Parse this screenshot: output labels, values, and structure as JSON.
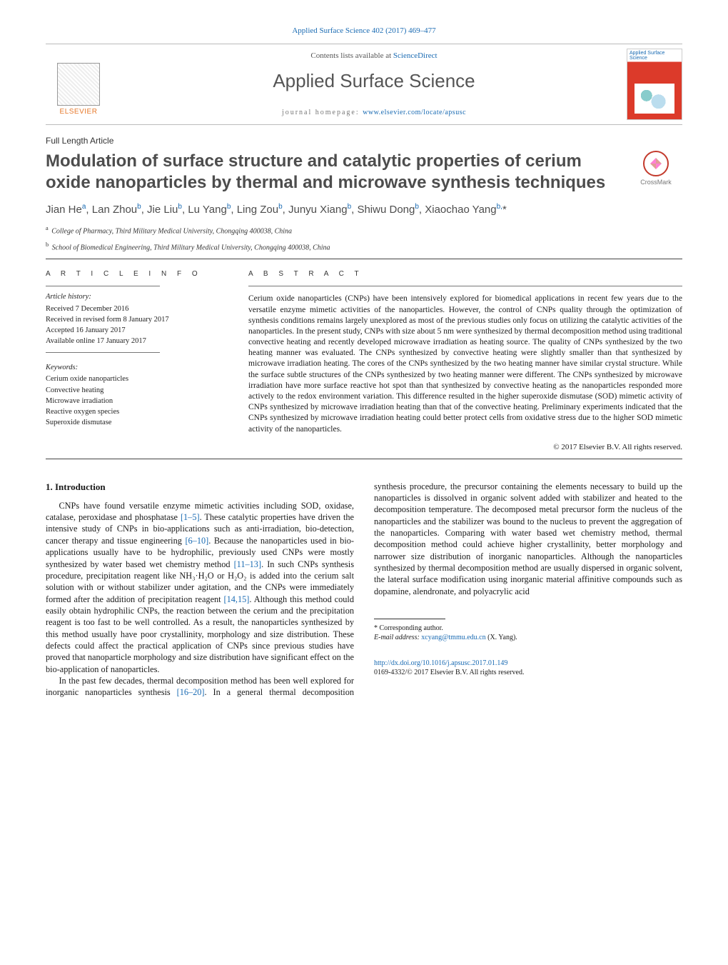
{
  "top_citation": "Applied Surface Science 402 (2017) 469–477",
  "masthead": {
    "publisher_name": "ELSEVIER",
    "sciencedirect_line_prefix": "Contents lists available at ",
    "sciencedirect_link": "ScienceDirect",
    "journal_name": "Applied Surface Science",
    "homepage_prefix": "journal homepage: ",
    "homepage_link": "www.elsevier.com/locate/apsusc",
    "cover_title": "Applied Surface Science"
  },
  "article_type": "Full Length Article",
  "title": "Modulation of surface structure and catalytic properties of cerium oxide nanoparticles by thermal and microwave synthesis techniques",
  "crossmark_label": "CrossMark",
  "authors_html": "Jian He<sup>a</sup>, Lan Zhou<sup>b</sup>, Jie Liu<sup>b</sup>, Lu Yang<sup>b</sup>, Ling Zou<sup>b</sup>, Junyu Xiang<sup>b</sup>, Shiwu Dong<sup>b</sup>, Xiaochao Yang<sup>b,</sup>*",
  "affiliations": [
    {
      "sup": "a",
      "text": "College of Pharmacy, Third Military Medical University, Chongqing 400038, China"
    },
    {
      "sup": "b",
      "text": "School of Biomedical Engineering, Third Military Medical University, Chongqing 400038, China"
    }
  ],
  "article_info": {
    "heading": "A R T I C L E   I N F O",
    "history_label": "Article history:",
    "history": [
      "Received 7 December 2016",
      "Received in revised form 8 January 2017",
      "Accepted 16 January 2017",
      "Available online 17 January 2017"
    ],
    "keywords_label": "Keywords:",
    "keywords": [
      "Cerium oxide nanoparticles",
      "Convective heating",
      "Microwave irradiation",
      "Reactive oxygen species",
      "Superoxide dismutase"
    ]
  },
  "abstract": {
    "heading": "A B S T R A C T",
    "text": "Cerium oxide nanoparticles (CNPs) have been intensively explored for biomedical applications in recent few years due to the versatile enzyme mimetic activities of the nanoparticles. However, the control of CNPs quality through the optimization of synthesis conditions remains largely unexplored as most of the previous studies only focus on utilizing the catalytic activities of the nanoparticles. In the present study, CNPs with size about 5 nm were synthesized by thermal decomposition method using traditional convective heating and recently developed microwave irradiation as heating source. The quality of CNPs synthesized by the two heating manner was evaluated. The CNPs synthesized by convective heating were slightly smaller than that synthesized by microwave irradiation heating. The cores of the CNPs synthesized by the two heating manner have similar crystal structure. While the surface subtle structures of the CNPs synthesized by two heating manner were different. The CNPs synthesized by microwave irradiation have more surface reactive hot spot than that synthesized by convective heating as the nanoparticles responded more actively to the redox environment variation. This difference resulted in the higher superoxide dismutase (SOD) mimetic activity of CNPs synthesized by microwave irradiation heating than that of the convective heating. Preliminary experiments indicated that the CNPs synthesized by microwave irradiation heating could better protect cells from oxidative stress due to the higher SOD mimetic activity of the nanoparticles.",
    "copyright": "© 2017 Elsevier B.V. All rights reserved."
  },
  "body": {
    "intro_heading": "1.  Introduction",
    "p1_a": "CNPs have found versatile enzyme mimetic activities including SOD, oxidase, catalase, peroxidase and phosphatase ",
    "p1_ref1": "[1–5]",
    "p1_b": ". These catalytic properties have driven the intensive study of CNPs in bio-applications such as anti-irradiation, bio-detection, cancer therapy and tissue engineering ",
    "p1_ref2": "[6–10]",
    "p1_c": ". Because the nanoparticles used in bio-applications usually have to be hydrophilic, previously used CNPs were mostly synthesized by water based wet chemistry method ",
    "p1_ref3": "[11–13]",
    "p1_d": ". In such CNPs synthesis procedure, precipitation reagent like NH₃·H₂O or H₂O₂ is added into the cerium salt solution with or without stabilizer under agitation, and the CNPs were immediately formed after the addition of precipitation reagent ",
    "p1_ref4": "[14,15]",
    "p1_e": ". Although this method could easily obtain hydrophilic CNPs, the reaction between the cerium and the precipitation reagent is too fast to be well controlled. As a result, the nanoparticles synthe",
    "p1_cont": "sized by this method usually have poor crystallinity, morphology and size distribution. These defects could affect the practical application of CNPs since previous studies have proved that nanoparticle morphology and size distribution have significant effect on the bio-application of nanoparticles.",
    "p2_a": "In the past few decades, thermal decomposition method has been well explored for inorganic nanoparticles synthesis ",
    "p2_ref1": "[16–20]",
    "p2_b": ". In a general thermal decomposition synthesis procedure, the precursor containing the elements necessary to build up the nanoparticles is dissolved in organic solvent added with stabilizer and heated to the decomposition temperature. The decomposed metal precursor form the nucleus of the nanoparticles and the stabilizer was bound to the nucleus to prevent the aggregation of the nanoparticles. Comparing with water based wet chemistry method, thermal decomposition method could achieve higher crystallinity, better morphology and narrower size distribution of inorganic nanoparticles. Although the nanoparticles synthesized by thermal decomposition method are usually dispersed in organic solvent, the lateral surface modification using inorganic material affinitive compounds such as dopamine, alendronate, and polyacrylic acid"
  },
  "footnote": {
    "corr": "* Corresponding author.",
    "email_label": "E-mail address: ",
    "email": "xcyang@tmmu.edu.cn",
    "email_suffix": " (X. Yang)."
  },
  "doi": {
    "link": "http://dx.doi.org/10.1016/j.apsusc.2017.01.149",
    "issn_line": "0169-4332/© 2017 Elsevier B.V. All rights reserved."
  },
  "colors": {
    "link": "#1a6bb3",
    "publisher_orange": "#e7792b",
    "heading_gray": "#4d4d4d",
    "rule": "#444444"
  }
}
